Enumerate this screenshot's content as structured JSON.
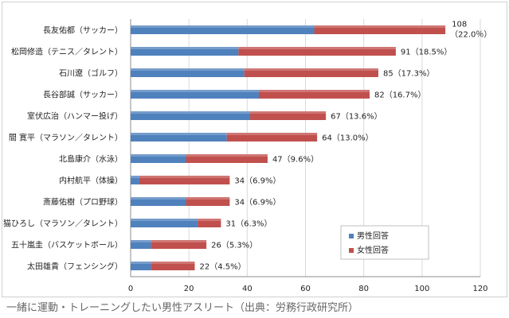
{
  "caption": "一緒に運動・トレーニングしたい男性アスリート（出典：労務行政研究所）",
  "chart_data": {
    "type": "bar",
    "orientation": "horizontal",
    "stacked": true,
    "categories": [
      "長友佑都（サッカー）",
      "松岡修造（テニス／タレント）",
      "石川遼（ゴルフ）",
      "長谷部誠（サッカー）",
      "室伏広治（ハンマー投げ）",
      "間 寛平（マラソン／タレント）",
      "北島康介（水泳）",
      "内村航平（体操）",
      "斎藤佑樹（プロ野球）",
      "猫ひろし（マラソン／タレント）",
      "五十嵐圭（バスケットボール）",
      "太田雄貴（フェンシング）"
    ],
    "series": [
      {
        "name": "男性回答",
        "color": "#4f81bd",
        "values": [
          63,
          37,
          39,
          44,
          41,
          33,
          19,
          3,
          19,
          23,
          7,
          7
        ]
      },
      {
        "name": "女性回答",
        "color": "#c0504d",
        "values": [
          45,
          54,
          46,
          38,
          26,
          31,
          28,
          31,
          15,
          8,
          19,
          15
        ]
      }
    ],
    "totals": [
      108,
      91,
      85,
      82,
      67,
      64,
      47,
      34,
      34,
      31,
      26,
      22
    ],
    "data_labels": [
      "108\n（22.0％）",
      "91（18.5%）",
      "85（17.3%）",
      "82（16.7%）",
      "67（13.6%）",
      "64（13.0%）",
      "47（9.6%）",
      "34（6.9%）",
      "34（6.9%）",
      "31（6.3%）",
      "26（5.3%）",
      "22（4.5%）"
    ],
    "xlim": [
      0,
      120
    ],
    "xticks": [
      "0",
      "20",
      "40",
      "60",
      "80",
      "100",
      "120"
    ],
    "grid": true,
    "legend_position": "bottom-right"
  }
}
